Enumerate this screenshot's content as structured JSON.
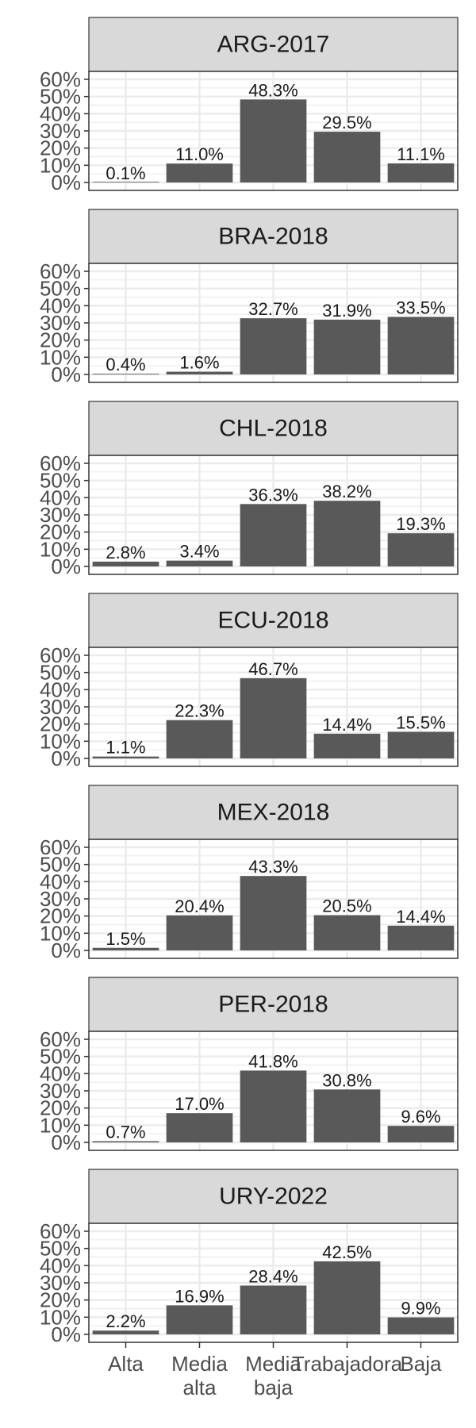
{
  "chart_data": {
    "type": "bar",
    "layout": "facet-column",
    "categories": [
      "Alta",
      "Media alta",
      "Media baja",
      "Trabajadora",
      "Baja"
    ],
    "category_lines": [
      [
        "Alta"
      ],
      [
        "Media",
        "alta"
      ],
      [
        "Media",
        "baja"
      ],
      [
        "Trabajadora"
      ],
      [
        "Baja"
      ]
    ],
    "ylim": [
      0,
      60
    ],
    "y_ticks": [
      0,
      10,
      20,
      30,
      40,
      50,
      60
    ],
    "y_tick_labels": [
      "0%",
      "10%",
      "20%",
      "30%",
      "40%",
      "50%",
      "60%"
    ],
    "grid": true,
    "bar_color": "#595959",
    "strip_color": "#d9d9d9",
    "facets": [
      {
        "title": "ARG-2017",
        "values": [
          0.1,
          11.0,
          48.3,
          29.5,
          11.1
        ],
        "labels": [
          "0.1%",
          "11.0%",
          "48.3%",
          "29.5%",
          "11.1%"
        ]
      },
      {
        "title": "BRA-2018",
        "values": [
          0.4,
          1.6,
          32.7,
          31.9,
          33.5
        ],
        "labels": [
          "0.4%",
          "1.6%",
          "32.7%",
          "31.9%",
          "33.5%"
        ]
      },
      {
        "title": "CHL-2018",
        "values": [
          2.8,
          3.4,
          36.3,
          38.2,
          19.3
        ],
        "labels": [
          "2.8%",
          "3.4%",
          "36.3%",
          "38.2%",
          "19.3%"
        ]
      },
      {
        "title": "ECU-2018",
        "values": [
          1.1,
          22.3,
          46.7,
          14.4,
          15.5
        ],
        "labels": [
          "1.1%",
          "22.3%",
          "46.7%",
          "14.4%",
          "15.5%"
        ]
      },
      {
        "title": "MEX-2018",
        "values": [
          1.5,
          20.4,
          43.3,
          20.5,
          14.4
        ],
        "labels": [
          "1.5%",
          "20.4%",
          "43.3%",
          "20.5%",
          "14.4%"
        ]
      },
      {
        "title": "PER-2018",
        "values": [
          0.7,
          17.0,
          41.8,
          30.8,
          9.6
        ],
        "labels": [
          "0.7%",
          "17.0%",
          "41.8%",
          "30.8%",
          "9.6%"
        ]
      },
      {
        "title": "URY-2022",
        "values": [
          2.2,
          16.9,
          28.4,
          42.5,
          9.9
        ],
        "labels": [
          "2.2%",
          "16.9%",
          "28.4%",
          "42.5%",
          "9.9%"
        ]
      }
    ]
  }
}
